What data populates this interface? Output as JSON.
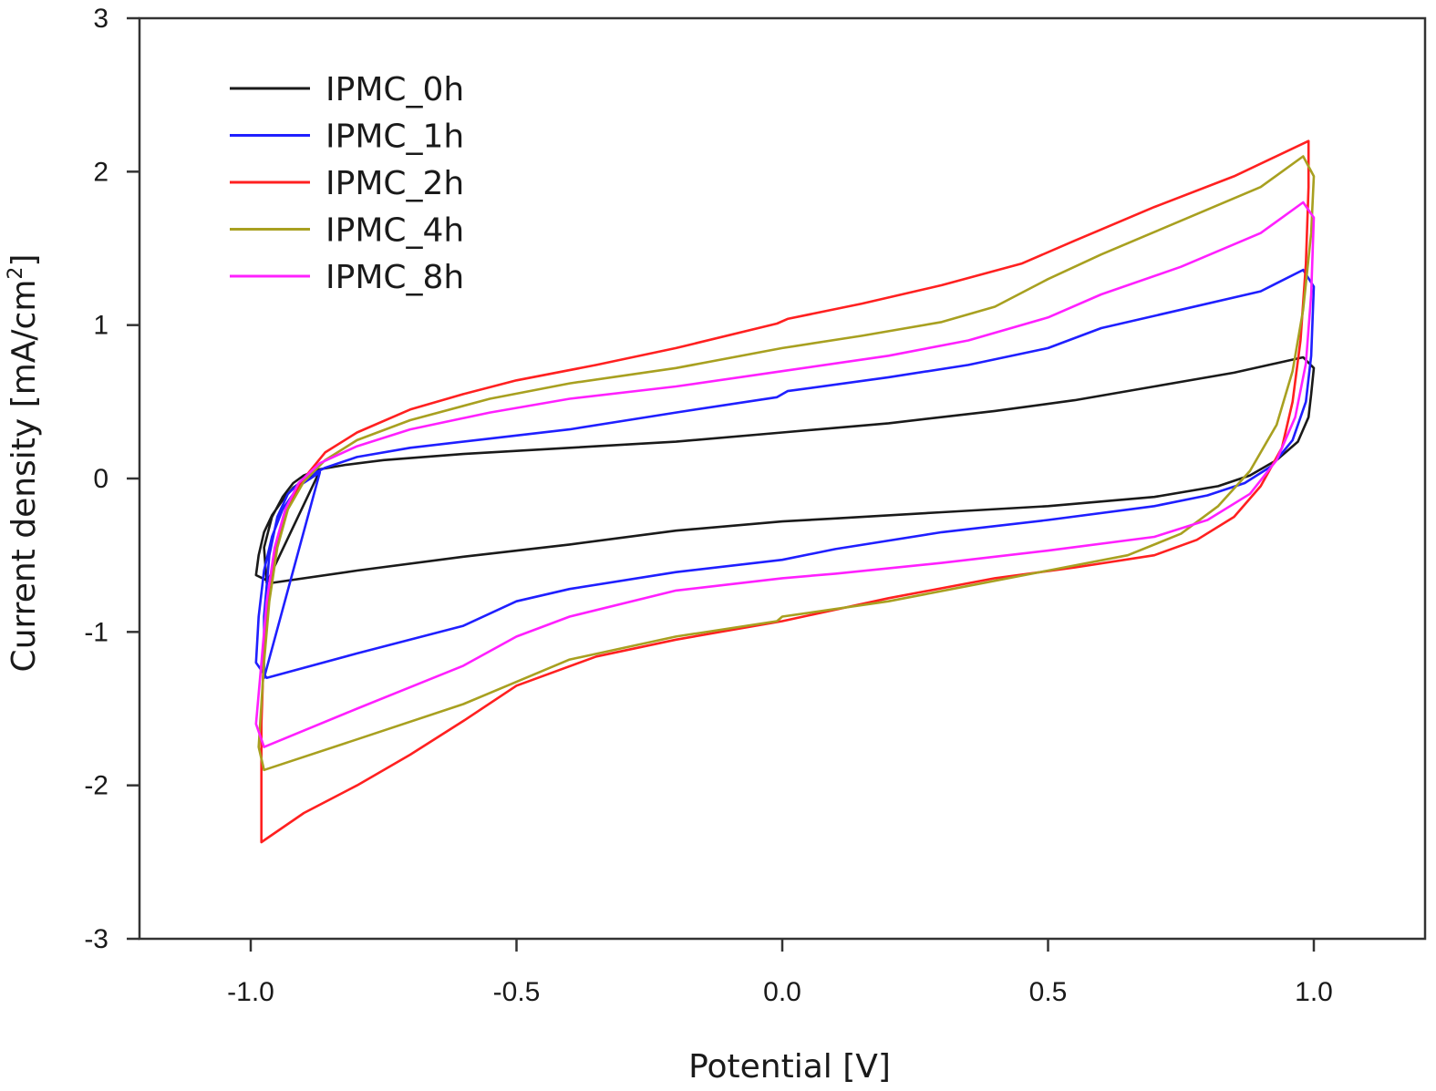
{
  "chart_data": {
    "type": "line",
    "title": "",
    "xlabel": "Potential [V]",
    "ylabel": "Current density [mA/cm²]",
    "ylabel_parts": {
      "main": "Current density [mA/cm",
      "sup": "2",
      "end": "]"
    },
    "xlim": [
      -1.2,
      1.2
    ],
    "ylim": [
      -3,
      3
    ],
    "xticks": [
      -1.0,
      -0.5,
      0.0,
      0.5,
      1.0
    ],
    "xtick_labels": [
      "-1.0",
      "-0.5",
      "0.0",
      "0.5",
      "1.0"
    ],
    "yticks": [
      3,
      2,
      1,
      0,
      -1,
      -2,
      -3
    ],
    "ytick_labels": [
      "3",
      "2",
      "1",
      "0",
      "-1",
      "-2",
      "-3"
    ],
    "grid": false,
    "legend_position": "top-left",
    "series": [
      {
        "name": "IPMC_0h",
        "color": "#1a1a1a",
        "points": [
          [
            -0.97,
            -0.68
          ],
          [
            -0.975,
            -0.45
          ],
          [
            -0.96,
            -0.25
          ],
          [
            -0.94,
            -0.12
          ],
          [
            -0.92,
            -0.03
          ],
          [
            -0.9,
            0.02
          ],
          [
            -0.87,
            0.06
          ],
          [
            -0.82,
            0.09
          ],
          [
            -0.75,
            0.12
          ],
          [
            -0.6,
            0.16
          ],
          [
            -0.4,
            0.2
          ],
          [
            -0.2,
            0.24
          ],
          [
            0.0,
            0.3
          ],
          [
            0.2,
            0.36
          ],
          [
            0.4,
            0.44
          ],
          [
            0.55,
            0.51
          ],
          [
            0.7,
            0.6
          ],
          [
            0.85,
            0.69
          ],
          [
            0.98,
            0.79
          ],
          [
            1.0,
            0.72
          ],
          [
            0.995,
            0.55
          ],
          [
            0.99,
            0.4
          ],
          [
            0.97,
            0.24
          ],
          [
            0.93,
            0.12
          ],
          [
            0.88,
            0.02
          ],
          [
            0.82,
            -0.05
          ],
          [
            0.7,
            -0.12
          ],
          [
            0.5,
            -0.18
          ],
          [
            0.3,
            -0.22
          ],
          [
            0.1,
            -0.26
          ],
          [
            0.0,
            -0.28
          ],
          [
            -0.2,
            -0.34
          ],
          [
            -0.4,
            -0.43
          ],
          [
            -0.6,
            -0.51
          ],
          [
            -0.8,
            -0.6
          ],
          [
            -0.96,
            -0.68
          ],
          [
            -0.99,
            -0.63
          ],
          [
            -0.985,
            -0.5
          ],
          [
            -0.975,
            -0.35
          ],
          [
            -0.96,
            -0.24
          ],
          [
            -0.94,
            -0.14
          ],
          [
            -0.92,
            -0.06
          ],
          [
            -0.895,
            0.0
          ],
          [
            -0.87,
            0.05
          ]
        ]
      },
      {
        "name": "IPMC_1h",
        "color": "#1f1fff",
        "points": [
          [
            -0.975,
            -1.3
          ],
          [
            -0.975,
            -0.9
          ],
          [
            -0.965,
            -0.5
          ],
          [
            -0.95,
            -0.25
          ],
          [
            -0.93,
            -0.1
          ],
          [
            -0.9,
            0.0
          ],
          [
            -0.86,
            0.07
          ],
          [
            -0.8,
            0.14
          ],
          [
            -0.7,
            0.2
          ],
          [
            -0.55,
            0.26
          ],
          [
            -0.4,
            0.32
          ],
          [
            -0.2,
            0.43
          ],
          [
            -0.01,
            0.53
          ],
          [
            0.01,
            0.57
          ],
          [
            0.2,
            0.66
          ],
          [
            0.35,
            0.74
          ],
          [
            0.5,
            0.85
          ],
          [
            0.6,
            0.98
          ],
          [
            0.75,
            1.1
          ],
          [
            0.9,
            1.22
          ],
          [
            0.98,
            1.36
          ],
          [
            1.0,
            1.25
          ],
          [
            0.995,
            0.8
          ],
          [
            0.985,
            0.5
          ],
          [
            0.96,
            0.25
          ],
          [
            0.92,
            0.08
          ],
          [
            0.87,
            -0.03
          ],
          [
            0.8,
            -0.11
          ],
          [
            0.7,
            -0.18
          ],
          [
            0.5,
            -0.27
          ],
          [
            0.3,
            -0.35
          ],
          [
            0.1,
            -0.46
          ],
          [
            0.0,
            -0.53
          ],
          [
            -0.2,
            -0.61
          ],
          [
            -0.4,
            -0.72
          ],
          [
            -0.5,
            -0.8
          ],
          [
            -0.6,
            -0.96
          ],
          [
            -0.8,
            -1.14
          ],
          [
            -0.97,
            -1.3
          ],
          [
            -0.99,
            -1.2
          ],
          [
            -0.985,
            -0.9
          ],
          [
            -0.975,
            -0.6
          ],
          [
            -0.96,
            -0.38
          ],
          [
            -0.94,
            -0.2
          ],
          [
            -0.91,
            -0.05
          ],
          [
            -0.87,
            0.04
          ]
        ]
      },
      {
        "name": "IPMC_2h",
        "color": "#ff2020",
        "points": [
          [
            -0.98,
            -2.37
          ],
          [
            -0.98,
            -1.6
          ],
          [
            -0.975,
            -1.1
          ],
          [
            -0.965,
            -0.7
          ],
          [
            -0.95,
            -0.4
          ],
          [
            -0.93,
            -0.18
          ],
          [
            -0.9,
            0.0
          ],
          [
            -0.86,
            0.17
          ],
          [
            -0.8,
            0.3
          ],
          [
            -0.7,
            0.45
          ],
          [
            -0.6,
            0.55
          ],
          [
            -0.5,
            0.64
          ],
          [
            -0.35,
            0.74
          ],
          [
            -0.2,
            0.85
          ],
          [
            -0.01,
            1.01
          ],
          [
            0.01,
            1.04
          ],
          [
            0.15,
            1.14
          ],
          [
            0.3,
            1.26
          ],
          [
            0.45,
            1.4
          ],
          [
            0.55,
            1.55
          ],
          [
            0.7,
            1.77
          ],
          [
            0.85,
            1.97
          ],
          [
            0.99,
            2.2
          ],
          [
            0.99,
            1.9
          ],
          [
            0.985,
            1.4
          ],
          [
            0.975,
            0.9
          ],
          [
            0.96,
            0.5
          ],
          [
            0.94,
            0.2
          ],
          [
            0.9,
            -0.05
          ],
          [
            0.85,
            -0.25
          ],
          [
            0.78,
            -0.4
          ],
          [
            0.7,
            -0.5
          ],
          [
            0.55,
            -0.58
          ],
          [
            0.4,
            -0.65
          ],
          [
            0.2,
            -0.78
          ],
          [
            0.0,
            -0.93
          ],
          [
            -0.2,
            -1.05
          ],
          [
            -0.35,
            -1.16
          ],
          [
            -0.5,
            -1.35
          ],
          [
            -0.6,
            -1.58
          ],
          [
            -0.7,
            -1.8
          ],
          [
            -0.8,
            -2.0
          ],
          [
            -0.9,
            -2.18
          ],
          [
            -0.98,
            -2.37
          ]
        ]
      },
      {
        "name": "IPMC_4h",
        "color": "#a8a020",
        "points": [
          [
            -0.975,
            -1.9
          ],
          [
            -0.985,
            -1.75
          ],
          [
            -0.975,
            -1.2
          ],
          [
            -0.965,
            -0.8
          ],
          [
            -0.95,
            -0.45
          ],
          [
            -0.93,
            -0.2
          ],
          [
            -0.9,
            -0.02
          ],
          [
            -0.86,
            0.12
          ],
          [
            -0.8,
            0.25
          ],
          [
            -0.7,
            0.38
          ],
          [
            -0.55,
            0.52
          ],
          [
            -0.4,
            0.62
          ],
          [
            -0.2,
            0.72
          ],
          [
            0.0,
            0.85
          ],
          [
            0.15,
            0.93
          ],
          [
            0.3,
            1.02
          ],
          [
            0.4,
            1.12
          ],
          [
            0.5,
            1.3
          ],
          [
            0.6,
            1.46
          ],
          [
            0.75,
            1.68
          ],
          [
            0.9,
            1.9
          ],
          [
            0.98,
            2.1
          ],
          [
            1.0,
            1.97
          ],
          [
            0.995,
            1.6
          ],
          [
            0.98,
            1.1
          ],
          [
            0.96,
            0.7
          ],
          [
            0.93,
            0.35
          ],
          [
            0.88,
            0.05
          ],
          [
            0.82,
            -0.18
          ],
          [
            0.75,
            -0.36
          ],
          [
            0.65,
            -0.5
          ],
          [
            0.5,
            -0.6
          ],
          [
            0.35,
            -0.7
          ],
          [
            0.2,
            -0.8
          ],
          [
            0.0,
            -0.9
          ],
          [
            -0.01,
            -0.93
          ],
          [
            -0.2,
            -1.03
          ],
          [
            -0.4,
            -1.18
          ],
          [
            -0.6,
            -1.47
          ],
          [
            -0.8,
            -1.7
          ],
          [
            -0.975,
            -1.9
          ]
        ]
      },
      {
        "name": "IPMC_8h",
        "color": "#ff20ff",
        "points": [
          [
            -0.975,
            -1.75
          ],
          [
            -0.99,
            -1.6
          ],
          [
            -0.98,
            -1.2
          ],
          [
            -0.97,
            -0.8
          ],
          [
            -0.955,
            -0.45
          ],
          [
            -0.935,
            -0.2
          ],
          [
            -0.91,
            -0.03
          ],
          [
            -0.87,
            0.1
          ],
          [
            -0.8,
            0.21
          ],
          [
            -0.7,
            0.32
          ],
          [
            -0.55,
            0.43
          ],
          [
            -0.4,
            0.52
          ],
          [
            -0.2,
            0.6
          ],
          [
            0.0,
            0.7
          ],
          [
            0.2,
            0.8
          ],
          [
            0.35,
            0.9
          ],
          [
            0.5,
            1.05
          ],
          [
            0.6,
            1.2
          ],
          [
            0.75,
            1.38
          ],
          [
            0.9,
            1.6
          ],
          [
            0.98,
            1.8
          ],
          [
            1.0,
            1.7
          ],
          [
            0.995,
            1.2
          ],
          [
            0.985,
            0.75
          ],
          [
            0.965,
            0.4
          ],
          [
            0.93,
            0.12
          ],
          [
            0.88,
            -0.1
          ],
          [
            0.8,
            -0.27
          ],
          [
            0.7,
            -0.38
          ],
          [
            0.5,
            -0.47
          ],
          [
            0.3,
            -0.55
          ],
          [
            0.1,
            -0.62
          ],
          [
            0.0,
            -0.65
          ],
          [
            -0.2,
            -0.73
          ],
          [
            -0.4,
            -0.9
          ],
          [
            -0.5,
            -1.03
          ],
          [
            -0.6,
            -1.22
          ],
          [
            -0.8,
            -1.5
          ],
          [
            -0.975,
            -1.75
          ]
        ]
      }
    ]
  }
}
